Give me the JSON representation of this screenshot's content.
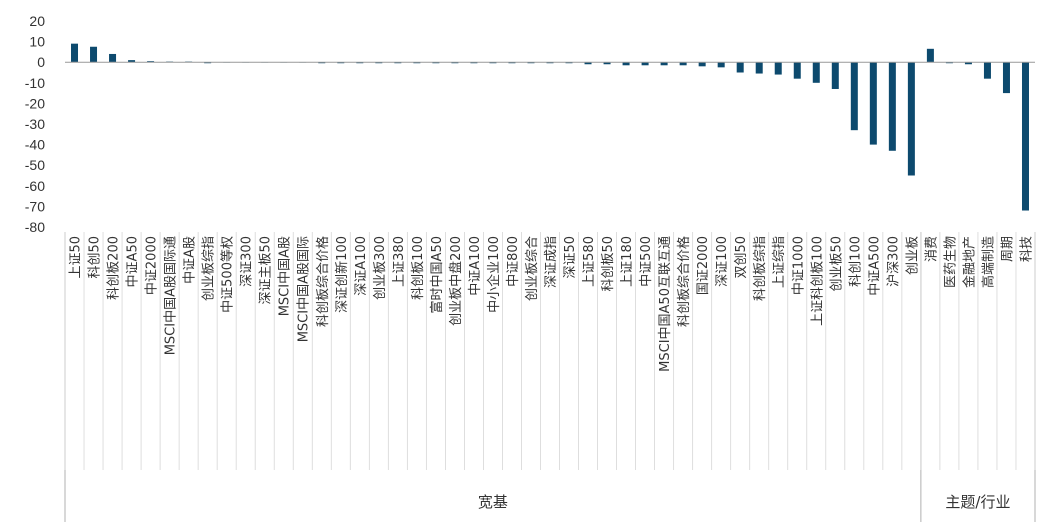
{
  "chart_data": {
    "type": "bar",
    "ylim": [
      -80,
      20
    ],
    "yticks": [
      20,
      10,
      0,
      -10,
      -20,
      -30,
      -40,
      -50,
      -60,
      -70,
      -80
    ],
    "grid": false,
    "legend": "none",
    "bar_color": "#0d4a6e",
    "axis_color": "#999999",
    "categories": [
      "上证50",
      "科创50",
      "科创板200",
      "中证A50",
      "中证2000",
      "MSCI中国A股国际通",
      "中证A股",
      "创业板综指",
      "中证500等权",
      "深证300",
      "深证主板50",
      "MSCI中国A股",
      "MSCI中国A股国际",
      "科创板综合价格",
      "深证创新100",
      "深证A100",
      "创业板300",
      "上证380",
      "科创板100",
      "富时中国A50",
      "创业板中盘200",
      "中证A100",
      "中小企业100",
      "中证800",
      "创业板综合",
      "深证成指",
      "深证50",
      "上证580",
      "科创板50",
      "上证180",
      "中证500",
      "MSCI中国A50互联互通",
      "科创板综合价格",
      "国证2000",
      "深证100",
      "双创50",
      "科创板综指",
      "上证综指",
      "中证1000",
      "上证科创板100",
      "创业板50",
      "科创100",
      "中证A500",
      "沪深300",
      "创业板",
      "消费",
      "医药生物",
      "金融地产",
      "高端制造",
      "周期",
      "科技"
    ],
    "values": [
      9,
      7.5,
      4,
      1,
      0.5,
      0.3,
      0.3,
      -0.5,
      0,
      0,
      0,
      0,
      0,
      -0.5,
      -0.5,
      -0.5,
      -0.5,
      -0.5,
      -0.5,
      -0.5,
      -0.5,
      -0.5,
      -0.5,
      -0.5,
      -0.5,
      -0.5,
      -0.5,
      -1,
      -1,
      -1.5,
      -1.5,
      -1.5,
      -1.5,
      -2,
      -2.5,
      -5,
      -5.5,
      -6,
      -8,
      -10,
      -13,
      -33,
      -40,
      -43,
      -55,
      6.5,
      -0.5,
      -1,
      -8,
      -15,
      -72
    ],
    "groups": [
      {
        "label": "宽基",
        "start": 0,
        "end": 44
      },
      {
        "label": "主题/行业",
        "start": 45,
        "end": 50
      }
    ]
  }
}
